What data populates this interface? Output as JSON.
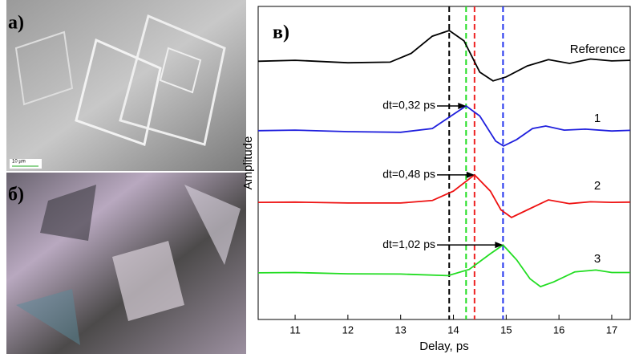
{
  "panels": {
    "a": "а)",
    "b": "б)",
    "scale": "10 µm"
  },
  "chart_data": {
    "type": "line",
    "panel_label": "в)",
    "x_label": "Delay, ps",
    "y_label": "Amplitude",
    "xlim": [
      10.3,
      17.35
    ],
    "ylim": [
      0,
      10
    ],
    "xticks": [
      11,
      12,
      13,
      14,
      15,
      16,
      17
    ],
    "vlines": [
      {
        "x": 13.92,
        "color": "#000000"
      },
      {
        "x": 14.24,
        "color": "#22dd22"
      },
      {
        "x": 14.4,
        "color": "#ee2222"
      },
      {
        "x": 14.94,
        "color": "#2233ee"
      }
    ],
    "series": [
      {
        "name": "Reference",
        "color": "#000000",
        "x": [
          10.3,
          11,
          12,
          12.8,
          13.2,
          13.6,
          13.92,
          14.2,
          14.5,
          14.75,
          15.0,
          15.4,
          15.8,
          16.2,
          16.6,
          17.0,
          17.35
        ],
        "values": [
          8.25,
          8.28,
          8.2,
          8.22,
          8.5,
          9.05,
          9.23,
          8.9,
          7.9,
          7.62,
          7.75,
          8.1,
          8.3,
          8.18,
          8.32,
          8.26,
          8.28
        ]
      },
      {
        "name": "1",
        "color": "#1f1fdd",
        "x": [
          10.3,
          11,
          12,
          13,
          13.6,
          14.0,
          14.24,
          14.5,
          14.8,
          14.95,
          15.2,
          15.5,
          15.75,
          16.1,
          16.5,
          17.0,
          17.35
        ],
        "values": [
          6.03,
          6.05,
          6.0,
          5.98,
          6.1,
          6.55,
          6.82,
          6.5,
          5.7,
          5.54,
          5.75,
          6.1,
          6.18,
          6.05,
          6.08,
          6.02,
          6.04
        ]
      },
      {
        "name": "2",
        "color": "#ee1111",
        "x": [
          10.3,
          11,
          12,
          13,
          13.6,
          14.0,
          14.4,
          14.7,
          14.9,
          15.1,
          15.4,
          15.8,
          16.2,
          16.6,
          17.0,
          17.35
        ],
        "values": [
          3.74,
          3.75,
          3.72,
          3.72,
          3.8,
          4.1,
          4.62,
          4.1,
          3.5,
          3.26,
          3.5,
          3.82,
          3.7,
          3.76,
          3.74,
          3.75
        ]
      },
      {
        "name": "3",
        "color": "#22dd22",
        "x": [
          10.3,
          11,
          12,
          13,
          13.9,
          14.3,
          14.7,
          14.94,
          15.2,
          15.45,
          15.65,
          15.9,
          16.3,
          16.7,
          17.0,
          17.35
        ],
        "values": [
          1.49,
          1.5,
          1.46,
          1.45,
          1.4,
          1.6,
          2.1,
          2.38,
          1.9,
          1.3,
          1.05,
          1.2,
          1.52,
          1.58,
          1.5,
          1.5
        ]
      }
    ],
    "annotations": [
      {
        "text": "dt=0,32 ps"
      },
      {
        "text": "dt=0,48 ps"
      },
      {
        "text": "dt=1,02 ps"
      }
    ]
  }
}
